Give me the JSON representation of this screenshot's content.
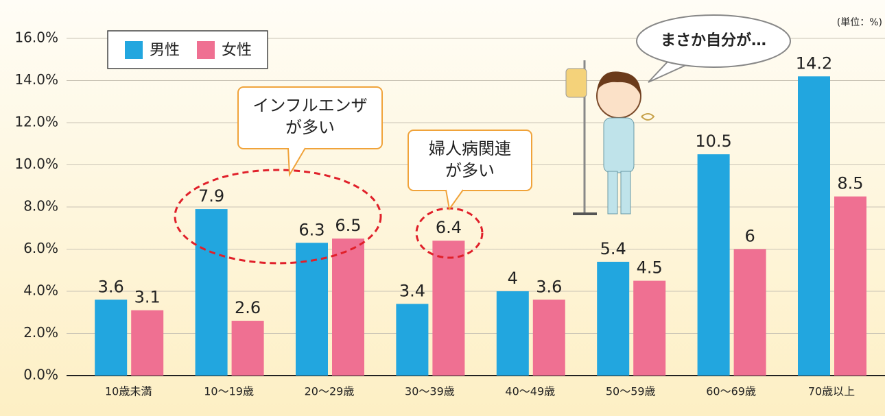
{
  "chart_data": {
    "type": "bar",
    "unit_note": "(単位：%)",
    "categories": [
      "10歳未満",
      "10〜19歳",
      "20〜29歳",
      "30〜39歳",
      "40〜49歳",
      "50〜59歳",
      "60〜69歳",
      "70歳以上"
    ],
    "series": [
      {
        "name": "男性",
        "color": "#22a6df",
        "values": [
          3.6,
          7.9,
          6.3,
          3.4,
          4.0,
          5.4,
          10.5,
          14.2
        ]
      },
      {
        "name": "女性",
        "color": "#ef7092",
        "values": [
          3.1,
          2.6,
          6.5,
          6.4,
          3.6,
          4.5,
          6.0,
          8.5
        ]
      }
    ],
    "ylim": [
      0,
      16
    ],
    "yticks": [
      {
        "value": 0,
        "label": "0.0%"
      },
      {
        "value": 2,
        "label": "2.0%"
      },
      {
        "value": 4,
        "label": "4.0%"
      },
      {
        "value": 6,
        "label": "6.0%"
      },
      {
        "value": 8,
        "label": "8.0%"
      },
      {
        "value": 10,
        "label": "10.0%"
      },
      {
        "value": 12,
        "label": "12.0%"
      },
      {
        "value": 14,
        "label": "14.0%"
      },
      {
        "value": 16,
        "label": "16.0%"
      }
    ],
    "grid": true,
    "legend": "top-left",
    "annotations": [
      [
        "インフルエンザ",
        "が多い"
      ],
      [
        "婦人病関連",
        "が多い"
      ]
    ],
    "speech": "まさか自分が…"
  }
}
